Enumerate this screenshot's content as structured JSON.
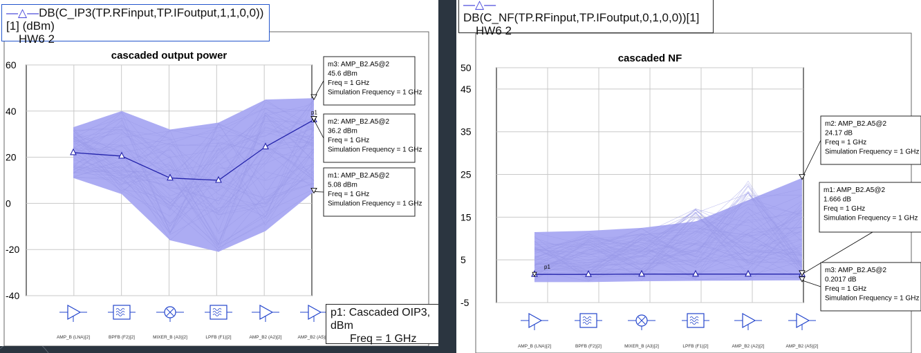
{
  "background": {
    "color": "#2b3540"
  },
  "colors": {
    "band": "#a8a8f2",
    "nominal": "#2222aa",
    "axis": "#000000",
    "grid": "#c8c8c8"
  },
  "left_panel": {
    "legend_expr": "DB(C_IP3(TP.RFinput,TP.IFoutput,1,1,0,0))[1] (dBm)",
    "legend_dataset": "HW6 2",
    "p1_label_line1": "p1: Cascaded OIP3, dBm",
    "p1_label_line2": "Freq = 1 GHz",
    "markers": [
      {
        "id": "m3",
        "lines": [
          "m3: AMP_B2.A5@2",
          "45.6 dBm",
          "Freq = 1 GHz",
          "Simulation Frequency = 1 GHz"
        ]
      },
      {
        "id": "m2",
        "lines": [
          "m2: AMP_B2.A5@2",
          "36.2 dBm",
          "Freq = 1 GHz",
          "Simulation Frequency = 1 GHz"
        ]
      },
      {
        "id": "m1",
        "lines": [
          "m1: AMP_B2.A5@2",
          "5.08 dBm",
          "Freq = 1 GHz",
          "Simulation Frequency = 1 GHz"
        ]
      }
    ],
    "stage_labels": [
      "AMP_B (LNA)[2]",
      "BPFB (F2)[2]",
      "MIXER_B (A3)[2]",
      "LPFB (F1)[2]",
      "AMP_B2 (A2)[2]",
      "AMP_B2 (A5)[2]"
    ],
    "stage_icons": [
      "amplifier-icon",
      "bandpass-filter-icon",
      "mixer-icon",
      "lowpass-filter-icon",
      "amplifier-icon",
      "amplifier-icon"
    ],
    "point_label": "p1"
  },
  "right_panel": {
    "legend_expr": "DB(C_NF(TP.RFinput,TP.IFoutput,0,1,0,0))[1]",
    "legend_dataset": "HW6 2",
    "markers": [
      {
        "id": "m2",
        "lines": [
          "m2: AMP_B2.A5@2",
          "24.17 dB",
          "Freq = 1 GHz",
          "Simulation Frequency = 1 GHz"
        ]
      },
      {
        "id": "m1",
        "lines": [
          "m1: AMP_B2.A5@2",
          "1.666 dB",
          "Freq = 1 GHz",
          "Simulation Frequency = 1 GHz"
        ]
      },
      {
        "id": "m3",
        "lines": [
          "m3: AMP_B2.A5@2",
          "0.2017 dB",
          "Freq = 1 GHz",
          "Simulation Frequency = 1 GHz"
        ]
      }
    ],
    "stage_labels": [
      "AMP_B (LNA)[2]",
      "BPFB (F2)[2]",
      "MIXER_B (A3)[2]",
      "LPFB (F1)[2]",
      "AMP_B2 (A2)[2]",
      "AMP_B2 (A5)[2]"
    ],
    "stage_icons": [
      "amplifier-icon",
      "bandpass-filter-icon",
      "mixer-icon",
      "lowpass-filter-icon",
      "amplifier-icon",
      "amplifier-icon"
    ],
    "point_label": "p1"
  },
  "chart_data": [
    {
      "type": "line",
      "title": "cascaded output power",
      "xlabel": "",
      "ylabel": "",
      "ylim": [
        -40,
        60
      ],
      "yticks": [
        -40,
        -20,
        0,
        20,
        40,
        60
      ],
      "grid": true,
      "categories": [
        "AMP_B (LNA)[2]",
        "BPFB (F2)[2]",
        "MIXER_B (A3)[2]",
        "LPFB (F1)[2]",
        "AMP_B2 (A2)[2]",
        "AMP_B2 (A5)[2]"
      ],
      "series": [
        {
          "values": [
            22,
            20.5,
            11,
            10,
            24.5,
            36.2
          ]
        }
      ],
      "band_upper": [
        33,
        40,
        32,
        35,
        45,
        45.6
      ],
      "band_lower": [
        11,
        4,
        -16,
        -21,
        -12,
        5.08
      ],
      "spread_max": [
        33,
        40,
        32,
        35,
        45,
        45.6
      ],
      "spread_min": [
        11,
        4,
        -16,
        -21,
        -12,
        5.08
      ]
    },
    {
      "type": "line",
      "title": "cascaded NF",
      "xlabel": "",
      "ylabel": "",
      "ylim": [
        -5,
        50
      ],
      "yticks": [
        -5,
        5,
        15,
        25,
        35,
        45,
        50
      ],
      "grid": true,
      "categories": [
        "AMP_B (LNA)[2]",
        "BPFB (F2)[2]",
        "MIXER_B (A3)[2]",
        "LPFB (F1)[2]",
        "AMP_B2 (A2)[2]",
        "AMP_B2 (A5)[2]"
      ],
      "series": [
        {
          "values": [
            1.6,
            1.6,
            1.66,
            1.66,
            1.66,
            1.666
          ]
        }
      ],
      "band_upper": [
        11.5,
        11.8,
        12.5,
        14,
        19,
        24.17
      ],
      "band_lower": [
        -0.2,
        -0.2,
        0,
        0.1,
        0.15,
        0.2017
      ],
      "spread_max": [
        11.5,
        11.8,
        12.5,
        17,
        23.5,
        24.17
      ],
      "spread_min": [
        -0.2,
        -0.2,
        0,
        0.1,
        0.15,
        0.2017
      ]
    }
  ]
}
